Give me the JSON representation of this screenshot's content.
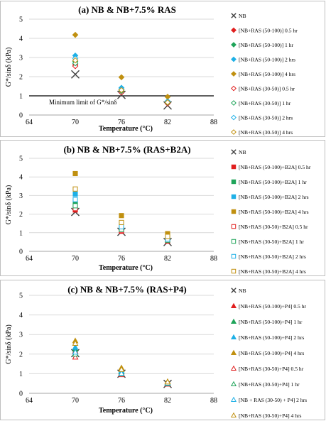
{
  "chart_data": [
    {
      "type": "scatter",
      "title": "(a) NB & NB+7.5% RAS",
      "xlabel": "Temperature (°C)",
      "ylabel": "G*/sinδ (kPa)",
      "xlim": [
        64,
        88
      ],
      "ylim": [
        0,
        5
      ],
      "xticks": [
        "64",
        "70",
        "76",
        "82",
        "88"
      ],
      "yticks": [
        "0",
        "1",
        "2",
        "3",
        "4",
        "5"
      ],
      "legend_position": "right",
      "reference_line": {
        "y": 1,
        "label": "Minimum limit of G*/sinδ"
      },
      "series": [
        {
          "name": "NB",
          "marker": "x",
          "color": "#404040",
          "x": [
            70,
            76,
            82
          ],
          "y": [
            2.12,
            1.05,
            0.5
          ]
        },
        {
          "name": "[NB+RAS (50-100)] 0.5 hr",
          "marker": "diamond",
          "filled": true,
          "color": "#e01f1f",
          "x": [
            70,
            76,
            82
          ],
          "y": [
            2.62,
            1.22,
            0.62
          ]
        },
        {
          "name": "[NB+RAS (50-100)] 1 hr",
          "marker": "diamond",
          "filled": true,
          "color": "#1fa45a",
          "x": [
            70,
            76,
            82
          ],
          "y": [
            2.8,
            1.3,
            0.68
          ]
        },
        {
          "name": "[NB+RAS (50-100)] 2 hrs",
          "marker": "diamond",
          "filled": true,
          "color": "#1fb0e6",
          "x": [
            70,
            76,
            82
          ],
          "y": [
            3.1,
            1.42,
            0.72
          ]
        },
        {
          "name": "[NB+RAS (50-100)] 4 hrs",
          "marker": "diamond",
          "filled": true,
          "color": "#c09010",
          "x": [
            70,
            76,
            82
          ],
          "y": [
            4.18,
            1.97,
            0.95
          ]
        },
        {
          "name": "[NB+RAS (30-50)] 0.5 hr",
          "marker": "diamond",
          "filled": false,
          "color": "#e01f1f",
          "x": [
            70,
            76,
            82
          ],
          "y": [
            2.55,
            1.18,
            0.6
          ]
        },
        {
          "name": "[NB+RAS (30-50)] 1 hr",
          "marker": "diamond",
          "filled": false,
          "color": "#1fa45a",
          "x": [
            70,
            76,
            82
          ],
          "y": [
            2.7,
            1.25,
            0.64
          ]
        },
        {
          "name": "[NB+RAS (30-50)] 2 hrs",
          "marker": "diamond",
          "filled": false,
          "color": "#1fb0e6",
          "x": [
            70,
            76,
            82
          ],
          "y": [
            2.95,
            1.35,
            0.7
          ]
        },
        {
          "name": "[NB+RAS (30-50)] 4 hrs",
          "marker": "diamond",
          "filled": false,
          "color": "#c09010",
          "x": [
            70,
            76,
            82
          ],
          "y": [
            2.85,
            1.3,
            0.66
          ]
        }
      ]
    },
    {
      "type": "scatter",
      "title": "(b) NB & NB+7.5% (RAS+B2A)",
      "xlabel": "Temperature (°C)",
      "ylabel": "G*/sinδ (kPa)",
      "xlim": [
        64,
        88
      ],
      "ylim": [
        0,
        5
      ],
      "xticks": [
        "64",
        "70",
        "76",
        "82",
        "88"
      ],
      "yticks": [
        "0",
        "1",
        "2",
        "3",
        "4",
        "5"
      ],
      "legend_position": "right",
      "series": [
        {
          "name": "NB",
          "marker": "x",
          "color": "#404040",
          "x": [
            70,
            76,
            82
          ],
          "y": [
            2.12,
            1.05,
            0.5
          ]
        },
        {
          "name": "[NB+RAS (50-100)+B2A] 0.5 hr",
          "marker": "square",
          "filled": true,
          "color": "#e01f1f",
          "x": [
            70,
            76,
            82
          ],
          "y": [
            2.22,
            1.08,
            0.55
          ]
        },
        {
          "name": "[NB+RAS (50-100)+B2A] 1 hr",
          "marker": "square",
          "filled": true,
          "color": "#1fa45a",
          "x": [
            70,
            76,
            82
          ],
          "y": [
            2.55,
            1.2,
            0.62
          ]
        },
        {
          "name": "[NB+RAS (50-100)+B2A] 2 hrs",
          "marker": "square",
          "filled": true,
          "color": "#1fb0e6",
          "x": [
            70,
            76,
            82
          ],
          "y": [
            3.08,
            1.45,
            0.72
          ]
        },
        {
          "name": "[NB+RAS (50-100)+B2A] 4 hrs",
          "marker": "square",
          "filled": true,
          "color": "#c09010",
          "x": [
            70,
            76,
            82
          ],
          "y": [
            4.18,
            1.92,
            0.95
          ]
        },
        {
          "name": "[NB+RAS (30-50)+B2A] 0.5 hr",
          "marker": "square",
          "filled": false,
          "color": "#e01f1f",
          "x": [
            70,
            76,
            82
          ],
          "y": [
            2.3,
            1.12,
            0.57
          ]
        },
        {
          "name": "[NB+RAS (30-50)+B2A] 1 hr",
          "marker": "square",
          "filled": false,
          "color": "#1fa45a",
          "x": [
            70,
            76,
            82
          ],
          "y": [
            2.45,
            1.18,
            0.6
          ]
        },
        {
          "name": "[NB+RAS (30-50)+B2A] 2 hrs",
          "marker": "square",
          "filled": false,
          "color": "#1fb0e6",
          "x": [
            70,
            76,
            82
          ],
          "y": [
            2.78,
            1.32,
            0.66
          ]
        },
        {
          "name": "[NB+RAS (30-50)+B2A] 4 hrs",
          "marker": "square",
          "filled": false,
          "color": "#c09010",
          "x": [
            70,
            76,
            82
          ],
          "y": [
            3.35,
            1.55,
            0.8
          ]
        }
      ]
    },
    {
      "type": "scatter",
      "title": "(c) NB & NB+7.5% (RAS+P4)",
      "xlabel": "Temperature (°C)",
      "ylabel": "G*/sinδ (kPa)",
      "xlim": [
        64,
        88
      ],
      "ylim": [
        0,
        5
      ],
      "xticks": [
        "64",
        "70",
        "76",
        "82",
        "88"
      ],
      "yticks": [
        "0",
        "1",
        "2",
        "3",
        "4",
        "5"
      ],
      "legend_position": "right",
      "series": [
        {
          "name": "NB",
          "marker": "x",
          "color": "#404040",
          "x": [
            70,
            76,
            82
          ],
          "y": [
            2.05,
            1.0,
            0.48
          ]
        },
        {
          "name": "[NB+RAS (50-100)+P4] 0.5 hr",
          "marker": "triangle",
          "filled": true,
          "color": "#e01f1f",
          "x": [
            70,
            76,
            82
          ],
          "y": [
            2.15,
            1.05,
            0.5
          ]
        },
        {
          "name": "[NB+RAS (50-100)+P4] 1 hr",
          "marker": "triangle",
          "filled": true,
          "color": "#1fa45a",
          "x": [
            70,
            76,
            82
          ],
          "y": [
            2.25,
            1.1,
            0.53
          ]
        },
        {
          "name": "[NB+RAS (50-100)+P4] 2 hrs",
          "marker": "triangle",
          "filled": true,
          "color": "#1fb0e6",
          "x": [
            70,
            76,
            82
          ],
          "y": [
            2.35,
            1.15,
            0.55
          ]
        },
        {
          "name": "[NB+RAS (50-100)+P4] 4 hrs",
          "marker": "triangle",
          "filled": true,
          "color": "#c09010",
          "x": [
            70,
            76,
            82
          ],
          "y": [
            2.68,
            1.3,
            0.6
          ]
        },
        {
          "name": "[NB+RAS (30-50)+P4] 0.5 hr",
          "marker": "triangle",
          "filled": false,
          "color": "#e01f1f",
          "x": [
            70,
            76,
            82
          ],
          "y": [
            1.85,
            0.95,
            0.47
          ]
        },
        {
          "name": "[NB+RAS (30-50)+P4] 1 hr",
          "marker": "triangle",
          "filled": false,
          "color": "#1fa45a",
          "x": [
            70,
            76,
            82
          ],
          "y": [
            2.0,
            1.0,
            0.5
          ]
        },
        {
          "name": "[NB + RAS (30-50) + P4] 2 hrs",
          "marker": "triangle",
          "filled": false,
          "color": "#1fb0e6",
          "x": [
            70,
            76,
            82
          ],
          "y": [
            2.1,
            1.02,
            0.52
          ]
        },
        {
          "name": "[NB+RAS (30-50)+P4] 4 hrs",
          "marker": "triangle",
          "filled": false,
          "color": "#c09010",
          "x": [
            70,
            76,
            82
          ],
          "y": [
            2.55,
            1.22,
            0.58
          ]
        }
      ]
    }
  ]
}
